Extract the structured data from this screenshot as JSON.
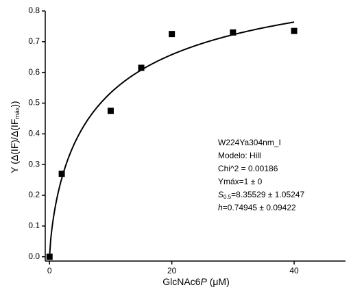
{
  "chart_data": {
    "type": "scatter",
    "x": [
      0,
      2,
      10,
      15,
      20,
      30,
      40
    ],
    "values": [
      0.0,
      0.27,
      0.475,
      0.615,
      0.725,
      0.73,
      0.735
    ],
    "color": "#000000",
    "fit": {
      "ymax": 1,
      "s05": 8.35529,
      "h": 0.74945
    },
    "xlim": [
      -0.7,
      48.4
    ],
    "xticks": [
      0,
      20,
      40
    ],
    "ylim": [
      -0.014,
      0.8
    ],
    "yticks": [
      {
        "value": 0,
        "label": "0.0"
      },
      0.1,
      0.2,
      0.3,
      0.4,
      0.5,
      0.6,
      0.7,
      0.8
    ],
    "x_label": {
      "main": "GlcNAc6",
      "italic": "P",
      "unit": " (μM)"
    },
    "y_label": {
      "main": "Y (Δ(IF)/Δ(IF",
      "subscript": "máx",
      "end": "))"
    },
    "annotations": [
      "W224Ya304nm_I",
      "Modelo: Hill",
      "Chi^2 = 0.00186",
      "Ymáx=1 ± 0"
    ],
    "s05_annotation": {
      "symbol": "S",
      "subscript": "0.5",
      "text": "=8.35529 ± 1.05247"
    },
    "h_annotation": {
      "symbol": "h",
      "text": "=0.74945 ± 0.09422"
    }
  }
}
